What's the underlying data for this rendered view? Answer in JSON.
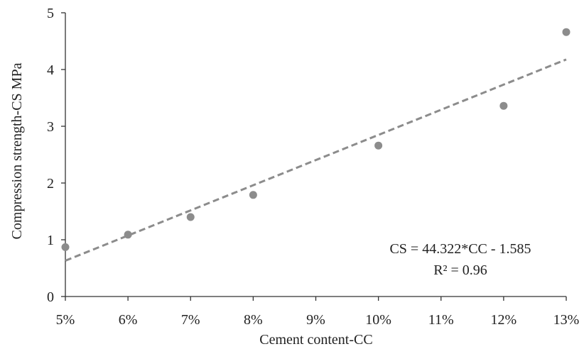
{
  "chart_data": {
    "type": "scatter",
    "xlabel": "Cement content-CC",
    "ylabel": "Compression strength-CS MPa",
    "x_ticks": [
      "5%",
      "6%",
      "7%",
      "8%",
      "9%",
      "10%",
      "11%",
      "12%",
      "13%"
    ],
    "y_ticks": [
      "0",
      "1",
      "2",
      "3",
      "4",
      "5"
    ],
    "xlim": [
      0.05,
      0.13
    ],
    "ylim": [
      0,
      5
    ],
    "points": [
      {
        "x": 0.05,
        "y": 0.87
      },
      {
        "x": 0.06,
        "y": 1.09
      },
      {
        "x": 0.07,
        "y": 1.4
      },
      {
        "x": 0.08,
        "y": 1.79
      },
      {
        "x": 0.1,
        "y": 2.66
      },
      {
        "x": 0.12,
        "y": 3.36
      },
      {
        "x": 0.13,
        "y": 4.66
      }
    ],
    "trendline": {
      "slope": 44.322,
      "intercept": -1.585,
      "style": "dashed",
      "equation": "CS = 44.322*CC - 1.585",
      "r_squared": "R² = 0.96"
    },
    "grid": false,
    "legend": "none",
    "colors": {
      "marker": "#8c8c8c",
      "trendline": "#8c8c8c",
      "axis": "#333333"
    }
  }
}
